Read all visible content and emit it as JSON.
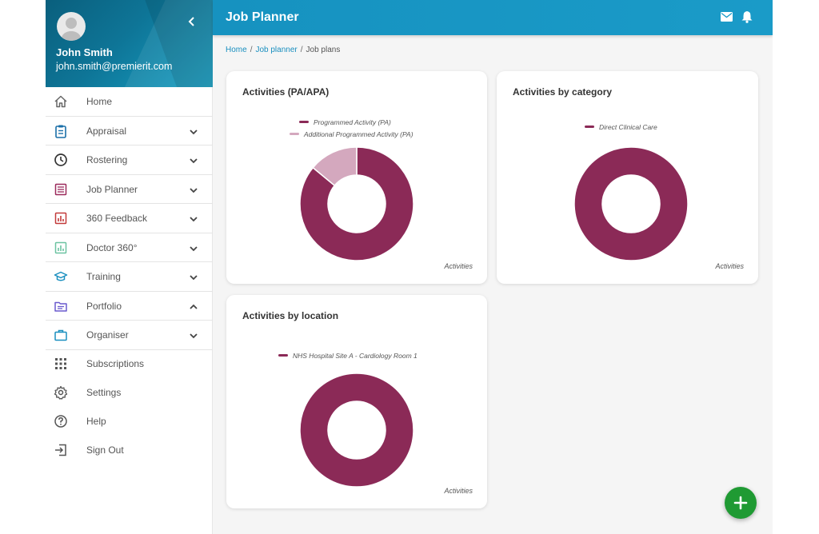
{
  "user": {
    "name": "John Smith",
    "email": "john.smith@premierit.com"
  },
  "header": {
    "title": "Job Planner"
  },
  "breadcrumb": {
    "home": "Home",
    "job_planner": "Job planner",
    "current": "Job plans"
  },
  "nav": {
    "items": [
      {
        "label": "Home",
        "icon": "home-icon"
      },
      {
        "label": "Appraisal",
        "icon": "clipboard-icon",
        "expand": "down"
      },
      {
        "label": "Rostering",
        "icon": "clock-icon",
        "expand": "down"
      },
      {
        "label": "Job Planner",
        "icon": "list-icon",
        "expand": "down"
      },
      {
        "label": "360 Feedback",
        "icon": "chart-icon",
        "expand": "down"
      },
      {
        "label": "Doctor 360°",
        "icon": "chart-icon",
        "expand": "down"
      },
      {
        "label": "Training",
        "icon": "graduation-cap-icon",
        "expand": "down"
      },
      {
        "label": "Portfolio",
        "icon": "folder-icon",
        "expand": "up"
      },
      {
        "label": "Organiser",
        "icon": "briefcase-icon",
        "expand": "down"
      }
    ],
    "bottom": [
      {
        "label": "Subscriptions",
        "icon": "grid-icon"
      },
      {
        "label": "Settings",
        "icon": "gear-icon"
      },
      {
        "label": "Help",
        "icon": "help-icon"
      },
      {
        "label": "Sign Out",
        "icon": "sign-out-icon"
      }
    ]
  },
  "colors": {
    "primary": "#1a9bc8",
    "series_main": "#8b2a57",
    "series_light": "#d4a8be",
    "fab": "#1f9a33"
  },
  "chart_data": [
    {
      "type": "pie",
      "title": "Activities (PA/APA)",
      "footer": "Activities",
      "series": [
        {
          "name": "Programmed Activity (PA)",
          "value": 86,
          "color": "#8b2a57"
        },
        {
          "name": "Additional Programmed Activity (PA)",
          "value": 14,
          "color": "#d4a8be"
        }
      ]
    },
    {
      "type": "pie",
      "title": "Activities by category",
      "footer": "Activities",
      "series": [
        {
          "name": "Direct Clinical Care",
          "value": 100,
          "color": "#8b2a57"
        }
      ]
    },
    {
      "type": "pie",
      "title": "Activities by location",
      "footer": "Activities",
      "series": [
        {
          "name": "NHS Hospital Site A - Cardiology Room 1",
          "value": 100,
          "color": "#8b2a57"
        }
      ]
    }
  ]
}
